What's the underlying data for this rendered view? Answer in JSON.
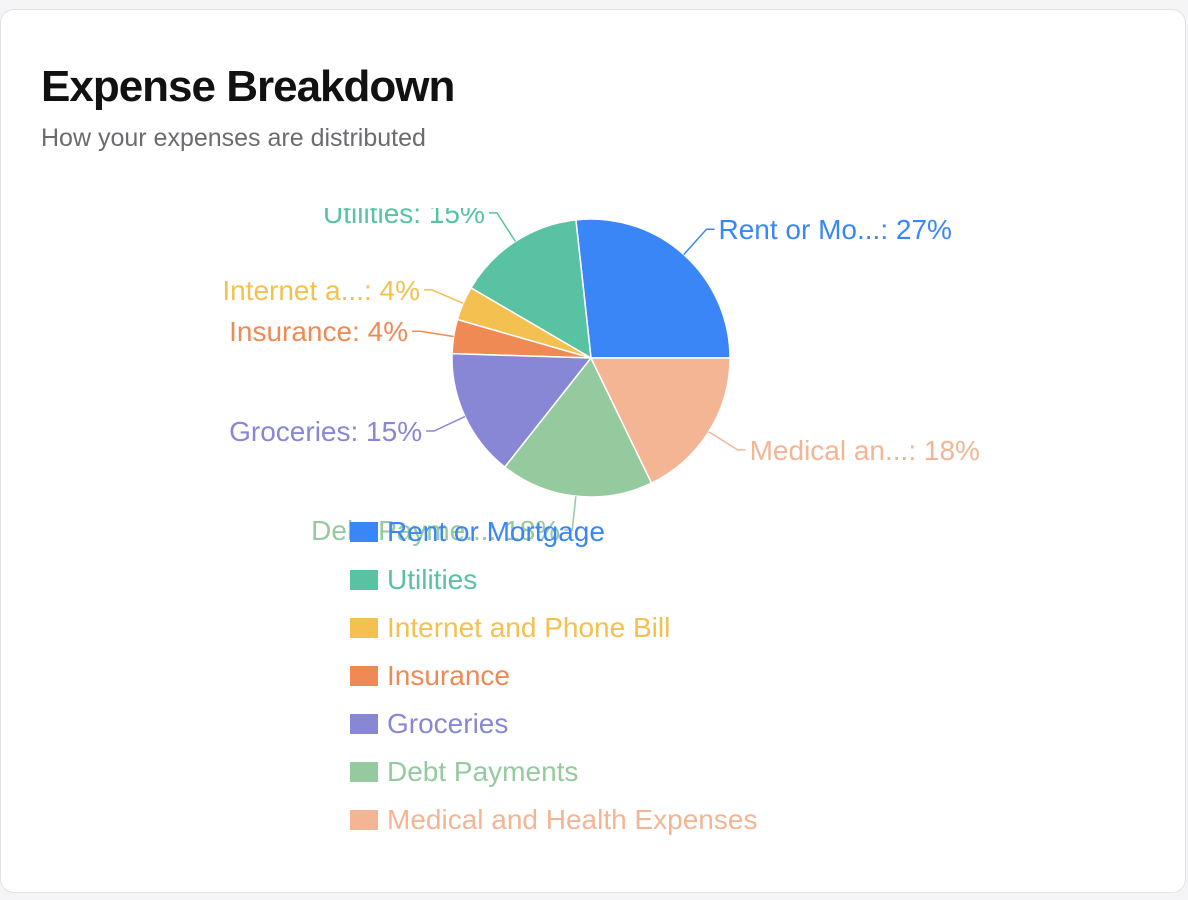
{
  "card": {
    "title": "Expense Breakdown",
    "subtitle": "How your expenses are distributed"
  },
  "chart_data": {
    "type": "pie",
    "slices": [
      {
        "name": "Rent or Mortgage",
        "label": "Rent or Mo...: 27%",
        "value": 27,
        "color": "#3b86f7"
      },
      {
        "name": "Utilities",
        "label": "Utilities: 15%",
        "value": 15,
        "color": "#58c2a2"
      },
      {
        "name": "Internet and Phone Bill",
        "label": "Internet a...: 4%",
        "value": 4,
        "color": "#f4c04f"
      },
      {
        "name": "Insurance",
        "label": "Insurance: 4%",
        "value": 4,
        "color": "#f08a55"
      },
      {
        "name": "Groceries",
        "label": "Groceries: 15%",
        "value": 15,
        "color": "#8887d6"
      },
      {
        "name": "Debt Payments",
        "label": "Debt Payme...: 18%",
        "value": 18,
        "color": "#95ca9f"
      },
      {
        "name": "Medical and Health Expenses",
        "label": "Medical an...: 18%",
        "value": 18,
        "color": "#f4b594"
      }
    ],
    "legend_position": "bottom"
  }
}
